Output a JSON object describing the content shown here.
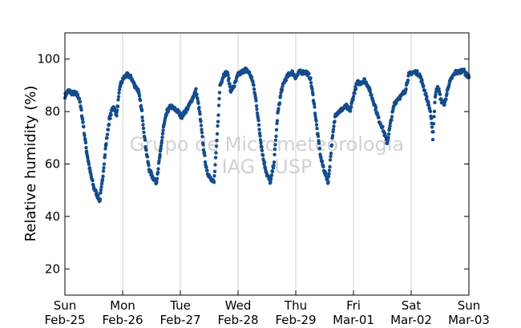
{
  "chart_data": {
    "type": "scatter",
    "ylabel": "Relative humidity (%)",
    "xlabel": "",
    "title": "",
    "ylim": [
      10,
      110
    ],
    "xlim_days": [
      0,
      7
    ],
    "y_ticks": [
      20,
      40,
      60,
      80,
      100
    ],
    "x_ticks": [
      {
        "day": "Sun",
        "date": "Feb-25"
      },
      {
        "day": "Mon",
        "date": "Feb-26"
      },
      {
        "day": "Tue",
        "date": "Feb-27"
      },
      {
        "day": "Wed",
        "date": "Feb-28"
      },
      {
        "day": "Thu",
        "date": "Feb-29"
      },
      {
        "day": "Fri",
        "date": "Mar-01"
      },
      {
        "day": "Sat",
        "date": "Mar-02"
      },
      {
        "day": "Sun",
        "date": "Mar-03"
      }
    ],
    "vertical_grid": true,
    "point_color": "#144c8c",
    "watermark": [
      "Grupo de Micrometeorologia",
      "IAG - USP"
    ],
    "series": [
      {
        "x_axis_note": "",
        "points": [
          [
            "2024-02-25 00:00",
            86
          ],
          [
            "2024-02-25 01:30",
            88
          ],
          [
            "2024-02-25 03:00",
            87
          ],
          [
            "2024-02-25 04:30",
            87
          ],
          [
            "2024-02-25 06:00",
            85
          ],
          [
            "2024-02-25 07:30",
            76
          ],
          [
            "2024-02-25 09:00",
            65
          ],
          [
            "2024-02-25 10:30",
            57
          ],
          [
            "2024-02-25 12:00",
            51
          ],
          [
            "2024-02-25 13:30",
            48
          ],
          [
            "2024-02-25 14:30",
            46
          ],
          [
            "2024-02-25 15:30",
            53
          ],
          [
            "2024-02-25 17:00",
            67
          ],
          [
            "2024-02-25 18:30",
            77
          ],
          [
            "2024-02-25 20:00",
            82
          ],
          [
            "2024-02-25 21:30",
            79
          ],
          [
            "2024-02-25 23:00",
            90
          ],
          [
            "2024-02-26 00:30",
            93
          ],
          [
            "2024-02-26 02:00",
            94
          ],
          [
            "2024-02-26 03:30",
            93
          ],
          [
            "2024-02-26 05:00",
            90
          ],
          [
            "2024-02-26 06:30",
            88
          ],
          [
            "2024-02-26 08:00",
            80
          ],
          [
            "2024-02-26 09:30",
            67
          ],
          [
            "2024-02-26 11:00",
            58
          ],
          [
            "2024-02-26 12:30",
            55
          ],
          [
            "2024-02-26 14:00",
            53
          ],
          [
            "2024-02-26 15:30",
            63
          ],
          [
            "2024-02-26 17:00",
            74
          ],
          [
            "2024-02-26 18:30",
            80
          ],
          [
            "2024-02-26 20:00",
            82
          ],
          [
            "2024-02-26 21:30",
            81
          ],
          [
            "2024-02-26 23:00",
            80
          ],
          [
            "2024-02-27 00:30",
            78
          ],
          [
            "2024-02-27 02:00",
            80
          ],
          [
            "2024-02-27 03:30",
            82
          ],
          [
            "2024-02-27 05:00",
            85
          ],
          [
            "2024-02-27 06:30",
            88
          ],
          [
            "2024-02-27 08:00",
            80
          ],
          [
            "2024-02-27 09:30",
            67
          ],
          [
            "2024-02-27 11:00",
            57
          ],
          [
            "2024-02-27 12:30",
            55
          ],
          [
            "2024-02-27 14:00",
            53
          ],
          [
            "2024-02-27 15:00",
            66
          ],
          [
            "2024-02-27 16:30",
            90
          ],
          [
            "2024-02-27 18:00",
            94
          ],
          [
            "2024-02-27 19:30",
            95
          ],
          [
            "2024-02-27 21:00",
            88
          ],
          [
            "2024-02-27 22:30",
            90
          ],
          [
            "2024-02-28 00:00",
            94
          ],
          [
            "2024-02-28 01:30",
            95
          ],
          [
            "2024-02-28 03:00",
            96
          ],
          [
            "2024-02-28 04:30",
            95
          ],
          [
            "2024-02-28 06:00",
            92
          ],
          [
            "2024-02-28 07:30",
            84
          ],
          [
            "2024-02-28 09:00",
            72
          ],
          [
            "2024-02-28 10:30",
            62
          ],
          [
            "2024-02-28 12:00",
            56
          ],
          [
            "2024-02-28 13:30",
            53
          ],
          [
            "2024-02-28 15:00",
            61
          ],
          [
            "2024-02-28 16:30",
            79
          ],
          [
            "2024-02-28 18:00",
            88
          ],
          [
            "2024-02-28 19:30",
            92
          ],
          [
            "2024-02-28 21:00",
            94
          ],
          [
            "2024-02-28 22:30",
            95
          ],
          [
            "2024-02-29 00:00",
            93
          ],
          [
            "2024-02-29 01:30",
            95
          ],
          [
            "2024-02-29 03:00",
            95
          ],
          [
            "2024-02-29 04:30",
            95
          ],
          [
            "2024-02-29 06:00",
            93
          ],
          [
            "2024-02-29 07:30",
            84
          ],
          [
            "2024-02-29 09:00",
            72
          ],
          [
            "2024-02-29 10:30",
            62
          ],
          [
            "2024-02-29 12:00",
            57
          ],
          [
            "2024-02-29 13:30",
            53
          ],
          [
            "2024-02-29 15:00",
            68
          ],
          [
            "2024-02-29 16:30",
            79
          ],
          [
            "2024-02-29 18:00",
            80
          ],
          [
            "2024-02-29 19:30",
            81
          ],
          [
            "2024-02-29 21:00",
            82
          ],
          [
            "2024-02-29 22:30",
            80
          ],
          [
            "2024-03-01 00:00",
            86
          ],
          [
            "2024-03-01 01:30",
            91
          ],
          [
            "2024-03-01 03:00",
            91
          ],
          [
            "2024-03-01 04:30",
            92
          ],
          [
            "2024-03-01 06:00",
            90
          ],
          [
            "2024-03-01 07:30",
            86
          ],
          [
            "2024-03-01 09:00",
            82
          ],
          [
            "2024-03-01 10:30",
            77
          ],
          [
            "2024-03-01 12:00",
            74
          ],
          [
            "2024-03-01 13:00",
            71
          ],
          [
            "2024-03-01 14:00",
            68
          ],
          [
            "2024-03-01 15:30",
            76
          ],
          [
            "2024-03-01 17:00",
            83
          ],
          [
            "2024-03-01 18:30",
            85
          ],
          [
            "2024-03-01 20:00",
            86
          ],
          [
            "2024-03-01 21:30",
            88
          ],
          [
            "2024-03-01 23:00",
            94
          ],
          [
            "2024-03-02 00:30",
            95
          ],
          [
            "2024-03-02 02:00",
            95
          ],
          [
            "2024-03-02 03:30",
            94
          ],
          [
            "2024-03-02 05:00",
            90
          ],
          [
            "2024-03-02 06:30",
            85
          ],
          [
            "2024-03-02 08:00",
            80
          ],
          [
            "2024-03-02 09:00",
            70
          ],
          [
            "2024-03-02 10:00",
            86
          ],
          [
            "2024-03-02 11:00",
            90
          ],
          [
            "2024-03-02 12:30",
            84
          ],
          [
            "2024-03-02 14:00",
            83
          ],
          [
            "2024-03-02 15:30",
            90
          ],
          [
            "2024-03-02 17:00",
            93
          ],
          [
            "2024-03-02 18:30",
            95
          ],
          [
            "2024-03-02 20:00",
            95
          ],
          [
            "2024-03-02 21:30",
            96
          ],
          [
            "2024-03-02 23:00",
            94
          ],
          [
            "2024-03-03 00:00",
            93
          ]
        ]
      }
    ]
  }
}
